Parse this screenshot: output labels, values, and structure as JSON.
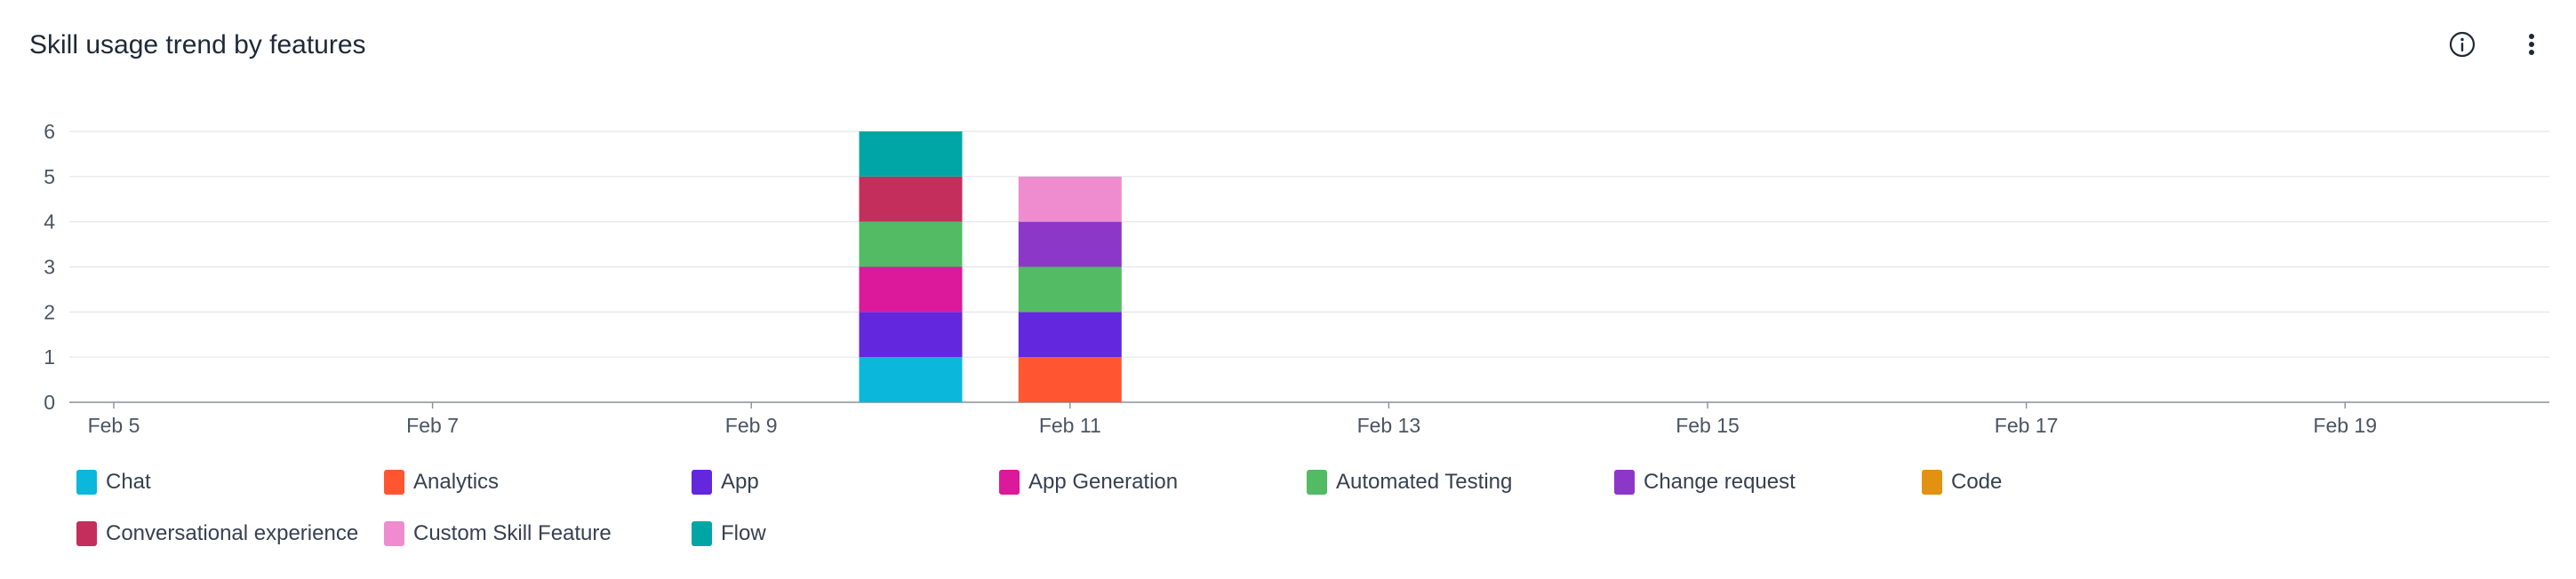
{
  "header": {
    "title": "Skill usage trend by features",
    "info_icon": "info-icon",
    "menu_icon": "more-vertical-icon"
  },
  "chart_data": {
    "type": "bar",
    "stacked": true,
    "title": "Skill usage trend by features",
    "xlabel": "",
    "ylabel": "",
    "ylim": [
      0,
      6
    ],
    "yticks": [
      0,
      1,
      2,
      3,
      4,
      5,
      6
    ],
    "x_tick_labels": [
      "Feb 5",
      "Feb 7",
      "Feb 9",
      "Feb 11",
      "Feb 13",
      "Feb 15",
      "Feb 17",
      "Feb 19"
    ],
    "categories": [
      "Feb 10",
      "Feb 11"
    ],
    "grid": true,
    "legend_position": "bottom",
    "series": [
      {
        "name": "Chat",
        "color": "#0bb7db",
        "values": [
          1,
          0
        ]
      },
      {
        "name": "Analytics",
        "color": "#ff5631",
        "values": [
          0,
          1
        ]
      },
      {
        "name": "App",
        "color": "#6327dd",
        "values": [
          1,
          1
        ]
      },
      {
        "name": "App Generation",
        "color": "#dc199b",
        "values": [
          1,
          0
        ]
      },
      {
        "name": "Automated Testing",
        "color": "#52bb64",
        "values": [
          1,
          1
        ]
      },
      {
        "name": "Change request",
        "color": "#8d37c8",
        "values": [
          0,
          1
        ]
      },
      {
        "name": "Code",
        "color": "#e29210",
        "values": [
          0,
          0
        ]
      },
      {
        "name": "Conversational experience",
        "color": "#c42e5d",
        "values": [
          1,
          0
        ]
      },
      {
        "name": "Custom Skill Feature",
        "color": "#ee8ccf",
        "values": [
          0,
          1
        ]
      },
      {
        "name": "Flow",
        "color": "#00a6a5",
        "values": [
          1,
          0
        ]
      }
    ]
  }
}
